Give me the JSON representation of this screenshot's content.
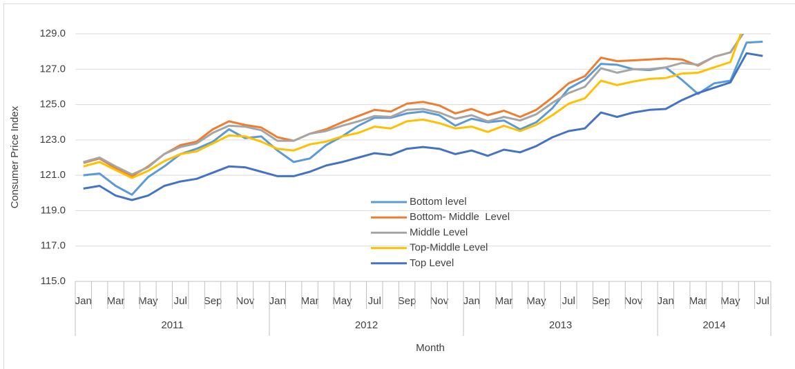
{
  "chart_data": {
    "type": "line",
    "y_label": "Consumer Price Index",
    "x_label": "Month",
    "categories": [
      "Jan",
      null,
      "Mar",
      null,
      "May",
      null,
      "Jul",
      null,
      "Sep",
      null,
      "Nov",
      null,
      "Jan",
      null,
      "Mar",
      null,
      "May",
      null,
      "Jul",
      null,
      "Sep",
      null,
      "Nov",
      null,
      "Jan",
      null,
      "Mar",
      null,
      "May",
      null,
      "Jul",
      null,
      "Sep",
      null,
      "Nov",
      null,
      "Jan",
      null,
      "Mar",
      null,
      "May",
      null,
      "Jul"
    ],
    "year_groups": [
      {
        "label": "2011",
        "count": 12
      },
      {
        "label": "2012",
        "count": 12
      },
      {
        "label": "2013",
        "count": 12
      },
      {
        "label": "2014",
        "count": 7
      }
    ],
    "ylim": [
      115,
      129
    ],
    "yticks": [
      {
        "value": 115,
        "label": "115.0"
      },
      {
        "value": 117,
        "label": "117.0"
      },
      {
        "value": 119,
        "label": "119.0"
      },
      {
        "value": 121,
        "label": "121.0"
      },
      {
        "value": 123,
        "label": "123.0"
      },
      {
        "value": 125,
        "label": "125.0"
      },
      {
        "value": 127,
        "label": "127.0"
      },
      {
        "value": 129,
        "label": "129.0"
      }
    ],
    "grid": true,
    "legend": "center",
    "series": [
      {
        "name": "Bottom level",
        "color": "#5b9bd5",
        "values": [
          121.0,
          121.1,
          120.4,
          119.9,
          120.9,
          121.5,
          122.2,
          122.5,
          122.9,
          123.6,
          123.1,
          123.2,
          122.4,
          121.75,
          121.95,
          122.7,
          123.2,
          123.8,
          124.25,
          124.25,
          124.5,
          124.6,
          124.4,
          123.8,
          124.2,
          124.0,
          124.1,
          123.6,
          124.0,
          124.8,
          125.9,
          126.4,
          127.3,
          127.25,
          127.0,
          126.95,
          127.1,
          126.4,
          125.6,
          126.2,
          126.35,
          128.5,
          128.55
        ]
      },
      {
        "name": "Bottom- Middle  Level",
        "color": "#ed7d31",
        "values": [
          121.7,
          121.95,
          121.4,
          120.95,
          121.5,
          122.2,
          122.7,
          122.9,
          123.6,
          124.05,
          123.85,
          123.7,
          123.15,
          122.95,
          123.35,
          123.6,
          124.0,
          124.35,
          124.7,
          124.6,
          125.05,
          125.15,
          124.95,
          124.5,
          124.75,
          124.4,
          124.65,
          124.3,
          124.7,
          125.4,
          126.2,
          126.6,
          127.65,
          127.45,
          127.5,
          127.55,
          127.6,
          127.55,
          127.2,
          127.7,
          127.95,
          129.3,
          129.5
        ]
      },
      {
        "name": "Middle Level",
        "color": "#a5a5a5",
        "values": [
          121.75,
          122.0,
          121.5,
          121.05,
          121.45,
          122.2,
          122.6,
          122.8,
          123.4,
          123.8,
          123.75,
          123.55,
          122.95,
          122.95,
          123.35,
          123.5,
          123.8,
          124.05,
          124.35,
          124.3,
          124.7,
          124.75,
          124.55,
          124.2,
          124.4,
          124.05,
          124.3,
          124.1,
          124.45,
          125.1,
          125.65,
          126.0,
          127.05,
          126.8,
          127.0,
          127.0,
          127.1,
          127.35,
          127.25,
          127.7,
          127.95,
          129.3,
          129.5
        ]
      },
      {
        "name": "Top-Middle Level",
        "color": "#ffc000",
        "values": [
          121.5,
          121.75,
          121.3,
          120.85,
          121.25,
          121.8,
          122.2,
          122.35,
          122.8,
          123.25,
          123.2,
          122.9,
          122.5,
          122.4,
          122.75,
          122.9,
          123.2,
          123.4,
          123.75,
          123.65,
          124.05,
          124.15,
          123.95,
          123.65,
          123.75,
          123.45,
          123.8,
          123.5,
          123.85,
          124.4,
          125.05,
          125.35,
          126.35,
          126.1,
          126.3,
          126.45,
          126.5,
          126.75,
          126.8,
          127.1,
          127.4,
          129.9,
          130.2
        ]
      },
      {
        "name": "Top Level",
        "color": "#4472c4",
        "values": [
          120.25,
          120.4,
          119.85,
          119.6,
          119.85,
          120.4,
          120.65,
          120.8,
          121.15,
          121.5,
          121.45,
          121.2,
          120.95,
          120.95,
          121.2,
          121.55,
          121.75,
          122.0,
          122.25,
          122.15,
          122.5,
          122.6,
          122.5,
          122.2,
          122.4,
          122.1,
          122.45,
          122.3,
          122.65,
          123.15,
          123.5,
          123.65,
          124.55,
          124.3,
          124.55,
          124.7,
          124.75,
          125.25,
          125.65,
          125.95,
          126.25,
          127.9,
          127.75
        ]
      }
    ]
  }
}
